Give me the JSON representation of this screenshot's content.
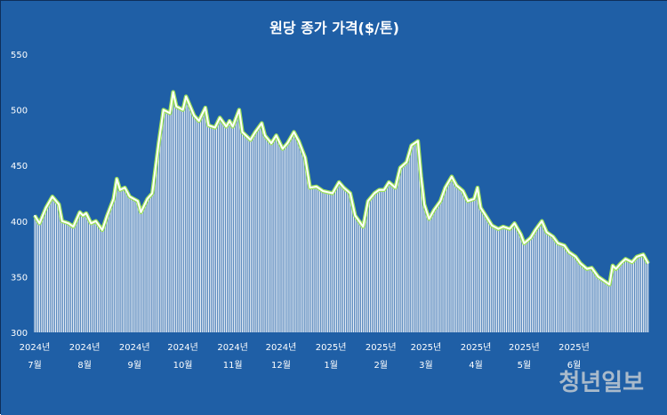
{
  "watermark": "청년일보",
  "colors": {
    "background": "#1f5fa6",
    "frame": "#0e2e5a",
    "bars": "#ffffff",
    "line_glow": "#9be05a",
    "line": "#ffffff",
    "text": "#ffffff",
    "watermark": "#b8c4d0"
  },
  "chart_data": {
    "type": "area",
    "title": "원당 종가 가격($/톤)",
    "xlabel": "",
    "ylabel": "",
    "ylim": [
      300,
      550
    ],
    "yticks": [
      "300",
      "350",
      "400",
      "450",
      "500",
      "550"
    ],
    "grid": false,
    "x_range": [
      "2024-07-01",
      "2025-07-01"
    ],
    "x_ticks": [
      {
        "date": "2024-07-01",
        "year": "2024년",
        "month": "7월"
      },
      {
        "date": "2024-08-01",
        "year": "2024년",
        "month": "8월"
      },
      {
        "date": "2024-09-01",
        "year": "2024년",
        "month": "9월"
      },
      {
        "date": "2024-10-01",
        "year": "2024년",
        "month": "10월"
      },
      {
        "date": "2024-11-01",
        "year": "2024년",
        "month": "11월"
      },
      {
        "date": "2024-12-01",
        "year": "2024년",
        "month": "12월"
      },
      {
        "date": "2025-01-01",
        "year": "2025년",
        "month": "1월"
      },
      {
        "date": "2025-02-01",
        "year": "2025년",
        "month": "2월"
      },
      {
        "date": "2025-03-01",
        "year": "2025년",
        "month": "3월"
      },
      {
        "date": "2025-04-01",
        "year": "2025년",
        "month": "4월"
      },
      {
        "date": "2025-05-01",
        "year": "2025년",
        "month": "5월"
      },
      {
        "date": "2025-06-01",
        "year": "2025년",
        "month": "6월"
      }
    ],
    "series": [
      {
        "name": "",
        "points": [
          [
            "2024-07-01",
            405
          ],
          [
            "2024-07-04",
            398
          ],
          [
            "2024-07-08",
            412
          ],
          [
            "2024-07-12",
            422
          ],
          [
            "2024-07-16",
            415
          ],
          [
            "2024-07-18",
            400
          ],
          [
            "2024-07-22",
            398
          ],
          [
            "2024-07-25",
            395
          ],
          [
            "2024-07-29",
            408
          ],
          [
            "2024-07-31",
            405
          ],
          [
            "2024-08-02",
            407
          ],
          [
            "2024-08-05",
            398
          ],
          [
            "2024-08-08",
            400
          ],
          [
            "2024-08-12",
            392
          ],
          [
            "2024-08-15",
            405
          ],
          [
            "2024-08-19",
            420
          ],
          [
            "2024-08-21",
            438
          ],
          [
            "2024-08-23",
            428
          ],
          [
            "2024-08-26",
            430
          ],
          [
            "2024-08-29",
            422
          ],
          [
            "2024-09-03",
            418
          ],
          [
            "2024-09-05",
            408
          ],
          [
            "2024-09-09",
            420
          ],
          [
            "2024-09-12",
            425
          ],
          [
            "2024-09-16",
            470
          ],
          [
            "2024-09-19",
            500
          ],
          [
            "2024-09-23",
            497
          ],
          [
            "2024-09-25",
            516
          ],
          [
            "2024-09-27",
            503
          ],
          [
            "2024-10-01",
            500
          ],
          [
            "2024-10-03",
            512
          ],
          [
            "2024-10-08",
            495
          ],
          [
            "2024-10-11",
            490
          ],
          [
            "2024-10-15",
            502
          ],
          [
            "2024-10-17",
            486
          ],
          [
            "2024-10-21",
            484
          ],
          [
            "2024-10-24",
            493
          ],
          [
            "2024-10-28",
            485
          ],
          [
            "2024-10-30",
            490
          ],
          [
            "2024-11-01",
            485
          ],
          [
            "2024-11-05",
            500
          ],
          [
            "2024-11-07",
            480
          ],
          [
            "2024-11-12",
            473
          ],
          [
            "2024-11-15",
            480
          ],
          [
            "2024-11-19",
            488
          ],
          [
            "2024-11-21",
            477
          ],
          [
            "2024-11-25",
            470
          ],
          [
            "2024-11-28",
            477
          ],
          [
            "2024-12-02",
            465
          ],
          [
            "2024-12-05",
            470
          ],
          [
            "2024-12-09",
            480
          ],
          [
            "2024-12-12",
            472
          ],
          [
            "2024-12-16",
            457
          ],
          [
            "2024-12-19",
            430
          ],
          [
            "2024-12-23",
            431
          ],
          [
            "2024-12-27",
            427
          ],
          [
            "2025-01-02",
            425
          ],
          [
            "2025-01-06",
            435
          ],
          [
            "2025-01-09",
            430
          ],
          [
            "2025-01-13",
            425
          ],
          [
            "2025-01-16",
            405
          ],
          [
            "2025-01-21",
            395
          ],
          [
            "2025-01-24",
            418
          ],
          [
            "2025-01-28",
            425
          ],
          [
            "2025-01-31",
            428
          ],
          [
            "2025-02-03",
            428
          ],
          [
            "2025-02-06",
            435
          ],
          [
            "2025-02-10",
            430
          ],
          [
            "2025-02-13",
            448
          ],
          [
            "2025-02-17",
            453
          ],
          [
            "2025-02-20",
            468
          ],
          [
            "2025-02-24",
            472
          ],
          [
            "2025-02-26",
            440
          ],
          [
            "2025-02-28",
            415
          ],
          [
            "2025-03-03",
            402
          ],
          [
            "2025-03-06",
            410
          ],
          [
            "2025-03-10",
            418
          ],
          [
            "2025-03-13",
            430
          ],
          [
            "2025-03-17",
            440
          ],
          [
            "2025-03-20",
            432
          ],
          [
            "2025-03-24",
            427
          ],
          [
            "2025-03-27",
            418
          ],
          [
            "2025-03-31",
            420
          ],
          [
            "2025-04-02",
            430
          ],
          [
            "2025-04-04",
            412
          ],
          [
            "2025-04-08",
            403
          ],
          [
            "2025-04-11",
            396
          ],
          [
            "2025-04-15",
            393
          ],
          [
            "2025-04-18",
            395
          ],
          [
            "2025-04-22",
            393
          ],
          [
            "2025-04-25",
            398
          ],
          [
            "2025-04-29",
            388
          ],
          [
            "2025-05-01",
            380
          ],
          [
            "2025-05-05",
            385
          ],
          [
            "2025-05-08",
            392
          ],
          [
            "2025-05-12",
            400
          ],
          [
            "2025-05-15",
            390
          ],
          [
            "2025-05-19",
            386
          ],
          [
            "2025-05-22",
            380
          ],
          [
            "2025-05-26",
            378
          ],
          [
            "2025-05-29",
            372
          ],
          [
            "2025-06-02",
            368
          ],
          [
            "2025-06-05",
            362
          ],
          [
            "2025-06-09",
            357
          ],
          [
            "2025-06-12",
            358
          ],
          [
            "2025-06-16",
            350
          ],
          [
            "2025-06-19",
            347
          ],
          [
            "2025-06-23",
            343
          ],
          [
            "2025-06-25",
            360
          ],
          [
            "2025-06-27",
            357
          ],
          [
            "2025-06-30",
            362
          ],
          [
            "2025-07-03",
            366
          ],
          [
            "2025-07-07",
            363
          ],
          [
            "2025-07-10",
            368
          ],
          [
            "2025-07-14",
            370
          ],
          [
            "2025-07-17",
            362
          ]
        ]
      }
    ]
  }
}
